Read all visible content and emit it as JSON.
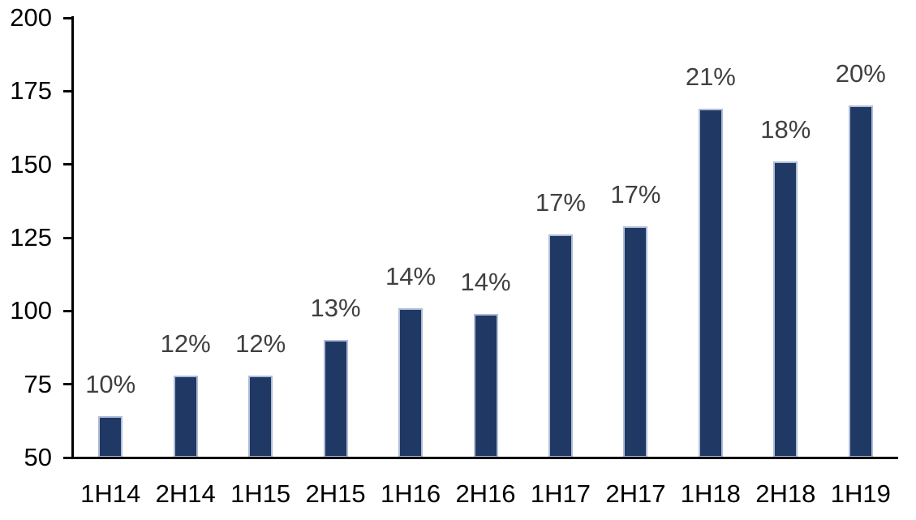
{
  "chart_data": {
    "type": "bar",
    "title": "",
    "xlabel": "",
    "ylabel": "",
    "categories": [
      "1H14",
      "2H14",
      "1H15",
      "2H15",
      "1H16",
      "2H16",
      "1H17",
      "2H17",
      "1H18",
      "2H18",
      "1H19"
    ],
    "values": [
      64,
      78,
      78,
      90,
      101,
      99,
      126,
      129,
      169,
      151,
      170
    ],
    "bar_labels": [
      "10%",
      "12%",
      "12%",
      "13%",
      "14%",
      "14%",
      "17%",
      "17%",
      "21%",
      "18%",
      "20%"
    ],
    "ylim": [
      50,
      200
    ],
    "yticks": [
      50,
      75,
      100,
      125,
      150,
      175,
      200
    ],
    "grid": false,
    "legend": "none",
    "colors": {
      "bar_fill": "#1f3864",
      "bar_border": "#aebcd8",
      "bar_label_text": "#404040",
      "axis_line": "#000000",
      "tick_label_text": "#000000",
      "background": "#ffffff"
    }
  }
}
